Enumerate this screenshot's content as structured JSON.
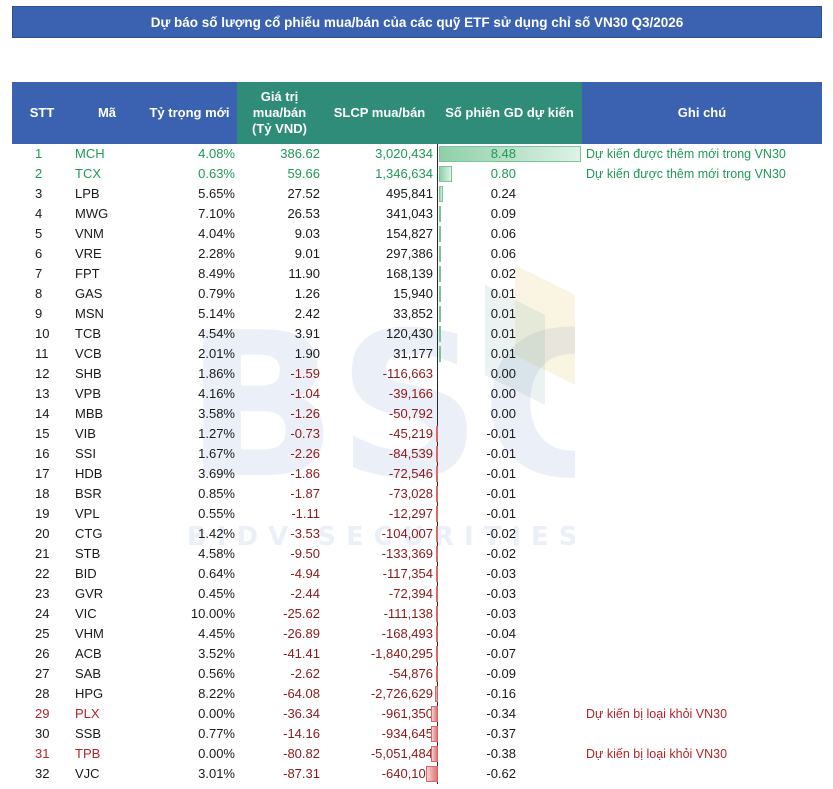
{
  "title": "Dự báo số lượng cổ phiếu mua/bán của các quỹ ETF sử dụng chỉ số VN30 Q3/2026",
  "headers": {
    "stt": "STT",
    "code": "Mã",
    "weight": "Tỷ trọng mới",
    "value_line1": "Giá trị",
    "value_line2": "mua/bán",
    "value_line3": "(Tỷ VND)",
    "volume": "SLCP mua/bán",
    "sessions": "Số phiên GD dự kiến",
    "note": "Ghi chú"
  },
  "watermark": {
    "logo_text": "BSC",
    "sub_text": "BIDV SECURITIES JSC"
  },
  "rows": [
    {
      "stt": "1",
      "code": "MCH",
      "weight": "4.08%",
      "value": "386.62",
      "volume": "3,020,434",
      "sessions": "8.48",
      "note": "Dự kiến được thêm mới trong VN30",
      "status": "added"
    },
    {
      "stt": "2",
      "code": "TCX",
      "weight": "0.63%",
      "value": "59.66",
      "volume": "1,346,634",
      "sessions": "0.80",
      "note": "Dự kiến được thêm mới trong VN30",
      "status": "added"
    },
    {
      "stt": "3",
      "code": "LPB",
      "weight": "5.65%",
      "value": "27.52",
      "volume": "495,841",
      "sessions": "0.24",
      "note": "",
      "status": ""
    },
    {
      "stt": "4",
      "code": "MWG",
      "weight": "7.10%",
      "value": "26.53",
      "volume": "341,043",
      "sessions": "0.09",
      "note": "",
      "status": ""
    },
    {
      "stt": "5",
      "code": "VNM",
      "weight": "4.04%",
      "value": "9.03",
      "volume": "154,827",
      "sessions": "0.06",
      "note": "",
      "status": ""
    },
    {
      "stt": "6",
      "code": "VRE",
      "weight": "2.28%",
      "value": "9.01",
      "volume": "297,386",
      "sessions": "0.06",
      "note": "",
      "status": ""
    },
    {
      "stt": "7",
      "code": "FPT",
      "weight": "8.49%",
      "value": "11.90",
      "volume": "168,139",
      "sessions": "0.02",
      "note": "",
      "status": ""
    },
    {
      "stt": "8",
      "code": "GAS",
      "weight": "0.79%",
      "value": "1.26",
      "volume": "15,940",
      "sessions": "0.01",
      "note": "",
      "status": ""
    },
    {
      "stt": "9",
      "code": "MSN",
      "weight": "5.14%",
      "value": "2.42",
      "volume": "33,852",
      "sessions": "0.01",
      "note": "",
      "status": ""
    },
    {
      "stt": "10",
      "code": "TCB",
      "weight": "4.54%",
      "value": "3.91",
      "volume": "120,430",
      "sessions": "0.01",
      "note": "",
      "status": ""
    },
    {
      "stt": "11",
      "code": "VCB",
      "weight": "2.01%",
      "value": "1.90",
      "volume": "31,177",
      "sessions": "0.01",
      "note": "",
      "status": ""
    },
    {
      "stt": "12",
      "code": "SHB",
      "weight": "1.86%",
      "value": "-1.59",
      "volume": "-116,663",
      "sessions": "0.00",
      "note": "",
      "status": ""
    },
    {
      "stt": "13",
      "code": "VPB",
      "weight": "4.16%",
      "value": "-1.04",
      "volume": "-39,166",
      "sessions": "0.00",
      "note": "",
      "status": ""
    },
    {
      "stt": "14",
      "code": "MBB",
      "weight": "3.58%",
      "value": "-1.26",
      "volume": "-50,792",
      "sessions": "0.00",
      "note": "",
      "status": ""
    },
    {
      "stt": "15",
      "code": "VIB",
      "weight": "1.27%",
      "value": "-0.73",
      "volume": "-45,219",
      "sessions": "-0.01",
      "note": "",
      "status": ""
    },
    {
      "stt": "16",
      "code": "SSI",
      "weight": "1.67%",
      "value": "-2.26",
      "volume": "-84,539",
      "sessions": "-0.01",
      "note": "",
      "status": ""
    },
    {
      "stt": "17",
      "code": "HDB",
      "weight": "3.69%",
      "value": "-1.86",
      "volume": "-72,546",
      "sessions": "-0.01",
      "note": "",
      "status": ""
    },
    {
      "stt": "18",
      "code": "BSR",
      "weight": "0.85%",
      "value": "-1.87",
      "volume": "-73,028",
      "sessions": "-0.01",
      "note": "",
      "status": ""
    },
    {
      "stt": "19",
      "code": "VPL",
      "weight": "0.55%",
      "value": "-1.11",
      "volume": "-12,297",
      "sessions": "-0.01",
      "note": "",
      "status": ""
    },
    {
      "stt": "20",
      "code": "CTG",
      "weight": "1.42%",
      "value": "-3.53",
      "volume": "-104,007",
      "sessions": "-0.02",
      "note": "",
      "status": ""
    },
    {
      "stt": "21",
      "code": "STB",
      "weight": "4.58%",
      "value": "-9.50",
      "volume": "-133,369",
      "sessions": "-0.02",
      "note": "",
      "status": ""
    },
    {
      "stt": "22",
      "code": "BID",
      "weight": "0.64%",
      "value": "-4.94",
      "volume": "-117,354",
      "sessions": "-0.03",
      "note": "",
      "status": ""
    },
    {
      "stt": "23",
      "code": "GVR",
      "weight": "0.45%",
      "value": "-2.44",
      "volume": "-72,394",
      "sessions": "-0.03",
      "note": "",
      "status": ""
    },
    {
      "stt": "24",
      "code": "VIC",
      "weight": "10.00%",
      "value": "-25.62",
      "volume": "-111,138",
      "sessions": "-0.03",
      "note": "",
      "status": ""
    },
    {
      "stt": "25",
      "code": "VHM",
      "weight": "4.45%",
      "value": "-26.89",
      "volume": "-168,493",
      "sessions": "-0.04",
      "note": "",
      "status": ""
    },
    {
      "stt": "26",
      "code": "ACB",
      "weight": "3.52%",
      "value": "-41.41",
      "volume": "-1,840,295",
      "sessions": "-0.07",
      "note": "",
      "status": ""
    },
    {
      "stt": "27",
      "code": "SAB",
      "weight": "0.56%",
      "value": "-2.62",
      "volume": "-54,876",
      "sessions": "-0.09",
      "note": "",
      "status": ""
    },
    {
      "stt": "28",
      "code": "HPG",
      "weight": "8.22%",
      "value": "-64.08",
      "volume": "-2,726,629",
      "sessions": "-0.16",
      "note": "",
      "status": ""
    },
    {
      "stt": "29",
      "code": "PLX",
      "weight": "0.00%",
      "value": "-36.34",
      "volume": "-961,350",
      "sessions": "-0.34",
      "note": "Dự kiến bị loại khỏi VN30",
      "status": "removed"
    },
    {
      "stt": "30",
      "code": "SSB",
      "weight": "0.77%",
      "value": "-14.16",
      "volume": "-934,645",
      "sessions": "-0.37",
      "note": "",
      "status": ""
    },
    {
      "stt": "31",
      "code": "TPB",
      "weight": "0.00%",
      "value": "-80.82",
      "volume": "-5,051,484",
      "sessions": "-0.38",
      "note": "Dự kiến bị loại khỏi VN30",
      "status": "removed"
    },
    {
      "stt": "32",
      "code": "VJC",
      "weight": "3.01%",
      "value": "-87.31",
      "volume": "-640,105",
      "sessions": "-0.62",
      "note": "",
      "status": ""
    }
  ]
}
